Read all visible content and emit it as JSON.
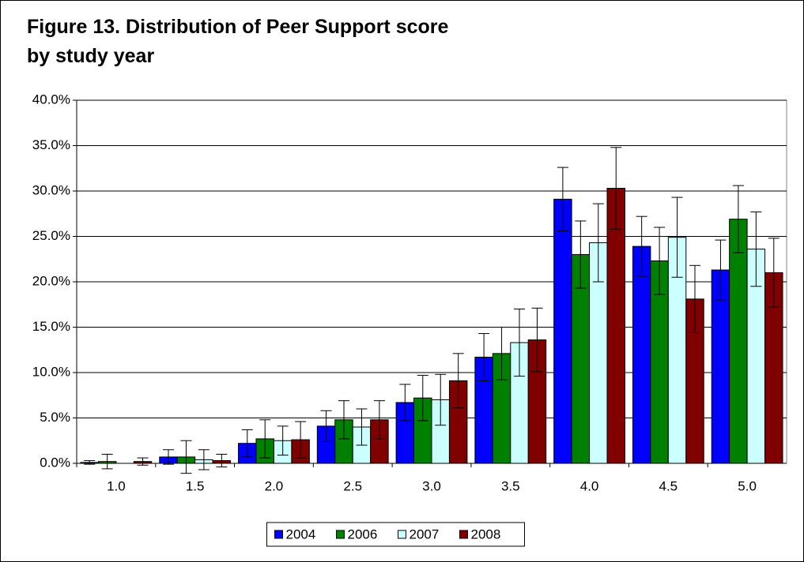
{
  "chart_data": {
    "type": "bar",
    "title": "Figure 13. Distribution of Peer Support score by study year",
    "categories": [
      "1.0",
      "1.5",
      "2.0",
      "2.5",
      "3.0",
      "3.5",
      "4.0",
      "4.5",
      "5.0"
    ],
    "series": [
      {
        "name": "2004",
        "color": "#0000ff",
        "values": [
          0.1,
          0.7,
          2.2,
          4.1,
          6.7,
          11.7,
          29.1,
          23.9,
          21.3
        ],
        "errors": [
          0.2,
          0.8,
          1.5,
          1.7,
          2.0,
          2.6,
          3.5,
          3.3,
          3.3
        ]
      },
      {
        "name": "2006",
        "color": "#008000",
        "values": [
          0.2,
          0.7,
          2.7,
          4.8,
          7.2,
          12.1,
          23.0,
          22.3,
          26.9
        ],
        "errors": [
          0.8,
          1.8,
          2.1,
          2.1,
          2.5,
          2.9,
          3.7,
          3.7,
          3.7
        ]
      },
      {
        "name": "2007",
        "color": "#ccffff",
        "values": [
          0.0,
          0.4,
          2.5,
          4.0,
          7.0,
          13.3,
          24.3,
          24.9,
          23.6
        ],
        "errors": [
          0.0,
          1.1,
          1.6,
          2.0,
          2.8,
          3.7,
          4.3,
          4.4,
          4.1
        ]
      },
      {
        "name": "2008",
        "color": "#800000",
        "values": [
          0.2,
          0.3,
          2.6,
          4.8,
          9.1,
          13.6,
          30.3,
          18.1,
          21.0
        ],
        "errors": [
          0.4,
          0.7,
          2.0,
          2.1,
          3.0,
          3.5,
          4.5,
          3.7,
          3.8
        ]
      }
    ],
    "ylim": [
      0,
      40
    ],
    "yticks": [
      {
        "value": 0,
        "label": "0.0%"
      },
      {
        "value": 5,
        "label": "5.0%"
      },
      {
        "value": 10,
        "label": "10.0%"
      },
      {
        "value": 15,
        "label": "15.0%"
      },
      {
        "value": 20,
        "label": "20.0%"
      },
      {
        "value": 25,
        "label": "25.0%"
      },
      {
        "value": 30,
        "label": "30.0%"
      },
      {
        "value": 35,
        "label": "35.0%"
      },
      {
        "value": 40,
        "label": "40.0%"
      }
    ],
    "grid": true,
    "legend": "bottom"
  }
}
